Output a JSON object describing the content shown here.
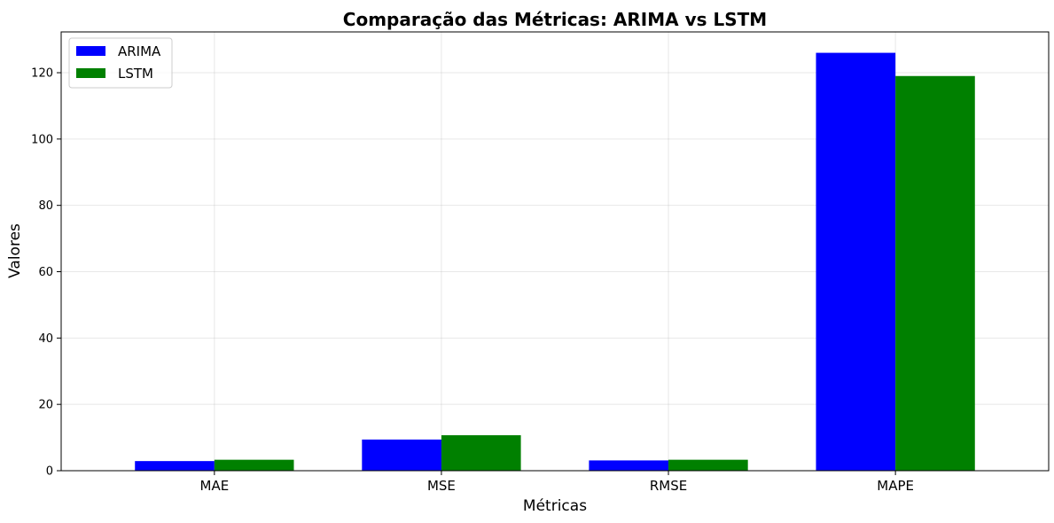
{
  "chart_data": {
    "type": "bar",
    "title": "Comparação das Métricas: ARIMA vs LSTM",
    "xlabel": "Métricas",
    "ylabel": "Valores",
    "categories": [
      "MAE",
      "MSE",
      "RMSE",
      "MAPE"
    ],
    "series": [
      {
        "name": "ARIMA",
        "color": "#0000ff",
        "values": [
          2.9,
          9.4,
          3.1,
          126.0
        ]
      },
      {
        "name": "LSTM",
        "color": "#008000",
        "values": [
          3.3,
          10.7,
          3.3,
          119.0
        ]
      }
    ],
    "ylim": [
      0,
      132.3
    ],
    "yticks": [
      0,
      20,
      40,
      60,
      80,
      100,
      120
    ],
    "grid": true,
    "legend_position": "top-left"
  }
}
